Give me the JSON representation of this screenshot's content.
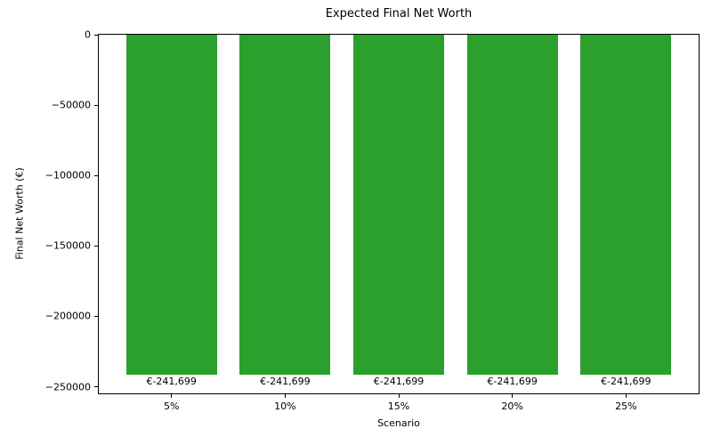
{
  "chart_data": {
    "type": "bar",
    "title": "Expected Final Net Worth",
    "xlabel": "Scenario",
    "ylabel": "Final Net Worth (€)",
    "categories": [
      "5%",
      "10%",
      "15%",
      "20%",
      "25%"
    ],
    "values": [
      -241699,
      -241699,
      -241699,
      -241699,
      -241699
    ],
    "bar_labels": [
      "€-241,699",
      "€-241,699",
      "€-241,699",
      "€-241,699",
      "€-241,699"
    ],
    "bar_color": "#2ca02c",
    "yticks": [
      0,
      -50000,
      -100000,
      -150000,
      -200000,
      -250000
    ],
    "ytick_labels": [
      "0",
      "−50000",
      "−100000",
      "−150000",
      "−200000",
      "−250000"
    ],
    "ylim": [
      -254700,
      0
    ],
    "xlim": [
      -0.64,
      4.64
    ],
    "bar_width": 0.8,
    "grid": false,
    "legend": "none",
    "background": "#ffffff"
  }
}
